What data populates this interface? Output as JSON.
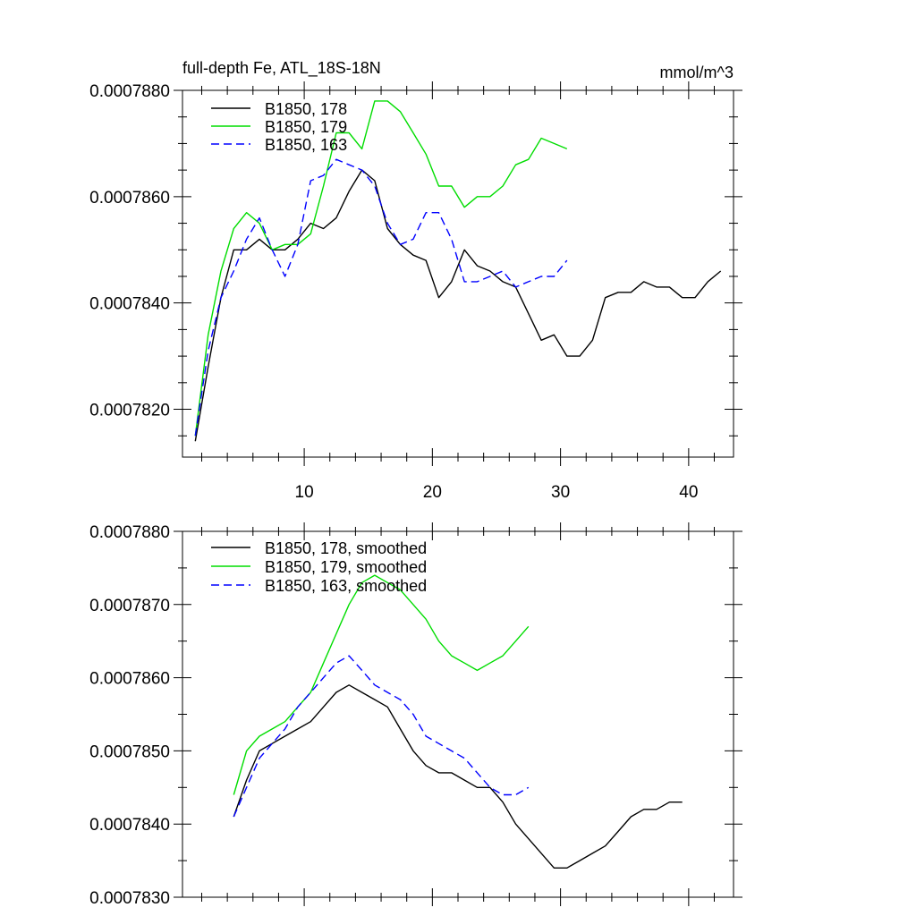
{
  "chart_data": [
    {
      "type": "line",
      "title": "full-depth Fe, ATL_18S-18N",
      "units": "mmol/m^3",
      "xlabel": "",
      "ylabel": "",
      "xlim": [
        0.5,
        43.5
      ],
      "ylim": [
        0.0007811,
        0.000788
      ],
      "x_ticks": [
        10,
        20,
        30,
        40
      ],
      "x_tick_labels": [
        "10",
        "20",
        "30",
        "40"
      ],
      "y_ticks": [
        0.000782,
        0.000784,
        0.000786,
        0.000788
      ],
      "y_tick_labels": [
        "0.0007820",
        "0.0007840",
        "0.0007860",
        "0.0007880"
      ],
      "legend_position": "top-left",
      "series": [
        {
          "name": "B1850, 178",
          "color": "#000000",
          "dash": "solid",
          "x": [
            1.5,
            2.5,
            3.5,
            4.5,
            5.5,
            6.5,
            7.5,
            8.5,
            9.5,
            10.5,
            11.5,
            12.5,
            13.5,
            14.5,
            15.5,
            16.5,
            17.5,
            18.5,
            19.5,
            20.5,
            21.5,
            22.5,
            23.5,
            24.5,
            25.5,
            26.5,
            27.5,
            28.5,
            29.5,
            30.5,
            31.5,
            32.5,
            33.5,
            34.5,
            35.5,
            36.5,
            37.5,
            38.5,
            39.5,
            40.5,
            41.5,
            42.5
          ],
          "y": [
            0.0007814,
            0.0007828,
            0.0007841,
            0.000785,
            0.000785,
            0.0007852,
            0.000785,
            0.000785,
            0.0007852,
            0.0007855,
            0.0007854,
            0.0007856,
            0.0007861,
            0.0007865,
            0.0007863,
            0.0007854,
            0.0007851,
            0.0007849,
            0.0007848,
            0.0007841,
            0.0007844,
            0.000785,
            0.0007847,
            0.0007846,
            0.0007844,
            0.0007843,
            0.0007838,
            0.0007833,
            0.0007834,
            0.000783,
            0.000783,
            0.0007833,
            0.0007841,
            0.0007842,
            0.0007842,
            0.0007844,
            0.0007843,
            0.0007843,
            0.0007841,
            0.0007841,
            0.0007844,
            0.0007846
          ]
        },
        {
          "name": "B1850, 179",
          "color": "#00dd00",
          "dash": "solid",
          "x": [
            1.5,
            2.5,
            3.5,
            4.5,
            5.5,
            6.5,
            7.5,
            8.5,
            9.5,
            10.5,
            11.5,
            12.5,
            13.5,
            14.5,
            15.5,
            16.5,
            17.5,
            18.5,
            19.5,
            20.5,
            21.5,
            22.5,
            23.5,
            24.5,
            25.5,
            26.5,
            27.5,
            28.5,
            29.5,
            30.5
          ],
          "y": [
            0.0007815,
            0.0007834,
            0.0007846,
            0.0007854,
            0.0007857,
            0.0007855,
            0.000785,
            0.0007851,
            0.0007851,
            0.0007853,
            0.0007862,
            0.0007872,
            0.0007872,
            0.0007869,
            0.0007878,
            0.0007878,
            0.0007876,
            0.0007872,
            0.0007868,
            0.0007862,
            0.0007862,
            0.0007858,
            0.000786,
            0.000786,
            0.0007862,
            0.0007866,
            0.0007867,
            0.0007871,
            0.000787,
            0.0007869
          ]
        },
        {
          "name": "B1850, 163",
          "color": "#0000ff",
          "dash": "dashed",
          "x": [
            1.5,
            2.5,
            3.5,
            4.5,
            5.5,
            6.5,
            7.5,
            8.5,
            9.5,
            10.5,
            11.5,
            12.5,
            13.5,
            14.5,
            15.5,
            16.5,
            17.5,
            18.5,
            19.5,
            20.5,
            21.5,
            22.5,
            23.5,
            24.5,
            25.5,
            26.5,
            27.5,
            28.5,
            29.5,
            30.5
          ],
          "y": [
            0.0007815,
            0.0007831,
            0.0007841,
            0.0007846,
            0.0007852,
            0.0007856,
            0.000785,
            0.0007845,
            0.0007851,
            0.0007863,
            0.0007864,
            0.0007867,
            0.0007866,
            0.0007865,
            0.0007862,
            0.0007855,
            0.0007851,
            0.0007852,
            0.0007857,
            0.0007857,
            0.0007852,
            0.0007844,
            0.0007844,
            0.0007845,
            0.0007846,
            0.0007843,
            0.0007844,
            0.0007845,
            0.0007845,
            0.0007848
          ]
        }
      ]
    },
    {
      "type": "line",
      "title": "",
      "xlabel": "",
      "ylabel": "",
      "xlim": [
        0.5,
        43.5
      ],
      "ylim": [
        0.000783,
        0.000788
      ],
      "x_ticks": [
        10,
        20,
        30,
        40
      ],
      "x_tick_labels": [],
      "y_ticks": [
        0.000783,
        0.000784,
        0.000785,
        0.000786,
        0.000787,
        0.000788
      ],
      "y_tick_labels": [
        "0.0007830",
        "0.0007840",
        "0.0007850",
        "0.0007860",
        "0.0007870",
        "0.0007880"
      ],
      "legend_position": "top-left",
      "series": [
        {
          "name": "B1850, 178, smoothed",
          "color": "#000000",
          "dash": "solid",
          "x": [
            4.5,
            5.5,
            6.5,
            7.5,
            8.5,
            9.5,
            10.5,
            11.5,
            12.5,
            13.5,
            14.5,
            15.5,
            16.5,
            17.5,
            18.5,
            19.5,
            20.5,
            21.5,
            22.5,
            23.5,
            24.5,
            25.5,
            26.5,
            27.5,
            28.5,
            29.5,
            30.5,
            31.5,
            32.5,
            33.5,
            34.5,
            35.5,
            36.5,
            37.5,
            38.5,
            39.5
          ],
          "y": [
            0.0007841,
            0.0007846,
            0.000785,
            0.0007851,
            0.0007852,
            0.0007853,
            0.0007854,
            0.0007856,
            0.0007858,
            0.0007859,
            0.0007858,
            0.0007857,
            0.0007856,
            0.0007853,
            0.000785,
            0.0007848,
            0.0007847,
            0.0007847,
            0.0007846,
            0.0007845,
            0.0007845,
            0.0007843,
            0.000784,
            0.0007838,
            0.0007836,
            0.0007834,
            0.0007834,
            0.0007835,
            0.0007836,
            0.0007837,
            0.0007839,
            0.0007841,
            0.0007842,
            0.0007842,
            0.0007843,
            0.0007843
          ]
        },
        {
          "name": "B1850, 179, smoothed",
          "color": "#00dd00",
          "dash": "solid",
          "x": [
            4.5,
            5.5,
            6.5,
            7.5,
            8.5,
            9.5,
            10.5,
            11.5,
            12.5,
            13.5,
            14.5,
            15.5,
            16.5,
            17.5,
            18.5,
            19.5,
            20.5,
            21.5,
            22.5,
            23.5,
            24.5,
            25.5,
            26.5,
            27.5
          ],
          "y": [
            0.0007844,
            0.000785,
            0.0007852,
            0.0007853,
            0.0007854,
            0.0007856,
            0.0007858,
            0.0007862,
            0.0007866,
            0.000787,
            0.0007873,
            0.0007874,
            0.0007873,
            0.0007872,
            0.000787,
            0.0007868,
            0.0007865,
            0.0007863,
            0.0007862,
            0.0007861,
            0.0007862,
            0.0007863,
            0.0007865,
            0.0007867
          ]
        },
        {
          "name": "B1850, 163, smoothed",
          "color": "#0000ff",
          "dash": "dashed",
          "x": [
            4.5,
            5.5,
            6.5,
            7.5,
            8.5,
            9.5,
            10.5,
            11.5,
            12.5,
            13.5,
            14.5,
            15.5,
            16.5,
            17.5,
            18.5,
            19.5,
            20.5,
            21.5,
            22.5,
            23.5,
            24.5,
            25.5,
            26.5,
            27.5
          ],
          "y": [
            0.0007841,
            0.0007845,
            0.0007849,
            0.0007851,
            0.0007853,
            0.0007856,
            0.0007858,
            0.000786,
            0.0007862,
            0.0007863,
            0.0007861,
            0.0007859,
            0.0007858,
            0.0007857,
            0.0007855,
            0.0007852,
            0.0007851,
            0.000785,
            0.0007849,
            0.0007847,
            0.0007845,
            0.0007844,
            0.0007844,
            0.0007845
          ]
        }
      ]
    }
  ]
}
